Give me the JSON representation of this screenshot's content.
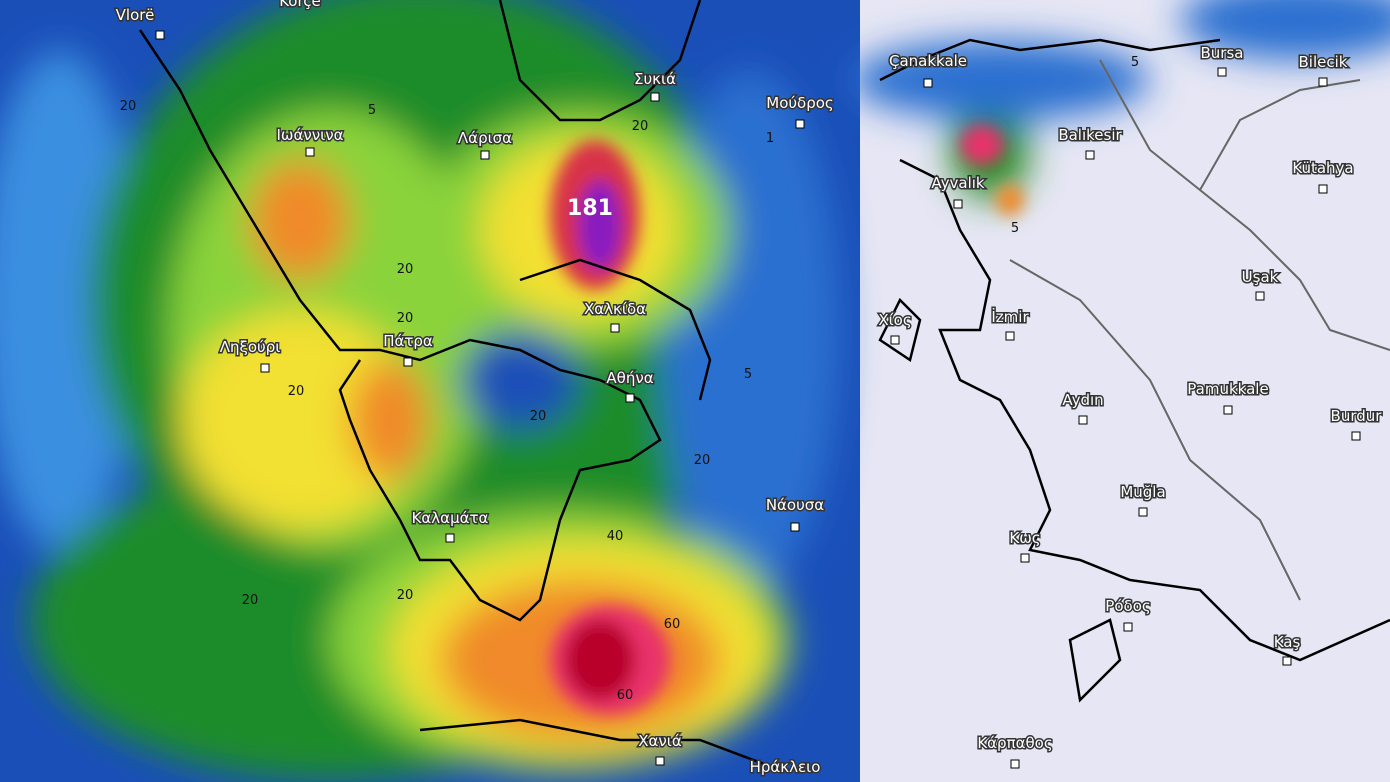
{
  "places": [
    "Vlorë",
    "Korçe",
    "Ιωάννινα",
    "Λάρισα",
    "Συκιά",
    "Μούδρος",
    "Çanakkale",
    "Bursa",
    "Bilecik",
    "Balıkesir",
    "Ayvalık",
    "Kütahya",
    "Uşak",
    "Χαλκίδα",
    "Χίος",
    "İzmir",
    "Ληξούρι",
    "Πάτρα",
    "Αθήνα",
    "Aydın",
    "Pamukkale",
    "Burdur",
    "Muğla",
    "Νάουσα",
    "Καλαμάτα",
    "Κως",
    "Ρόδος",
    "Kaş",
    "Κάρπαθος",
    "Χανιά",
    "Ηράκλειο"
  ],
  "contour_labels": [
    "20",
    "5",
    "20",
    "20",
    "20",
    "20",
    "20",
    "20",
    "5",
    "40",
    "60",
    "60",
    "20",
    "20",
    "5",
    "5",
    "1"
  ],
  "max_label": "181"
}
